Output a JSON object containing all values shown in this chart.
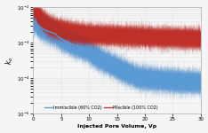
{
  "title": "",
  "xlabel": "Injected Pore Volume, Vp",
  "ylabel": "k_o",
  "xlim": [
    0,
    30
  ],
  "ylim_log": [
    1e-05,
    0.01
  ],
  "x_ticks": [
    0,
    5,
    10,
    15,
    20,
    25,
    30
  ],
  "legend": [
    "Immiscible (60% CO2)",
    "Miscible (100% CO2)"
  ],
  "immiscible_color": "#5b9bd5",
  "miscible_color": "#c0302a",
  "background_color": "#f5f5f5",
  "grid_color": "#e8e8e8"
}
